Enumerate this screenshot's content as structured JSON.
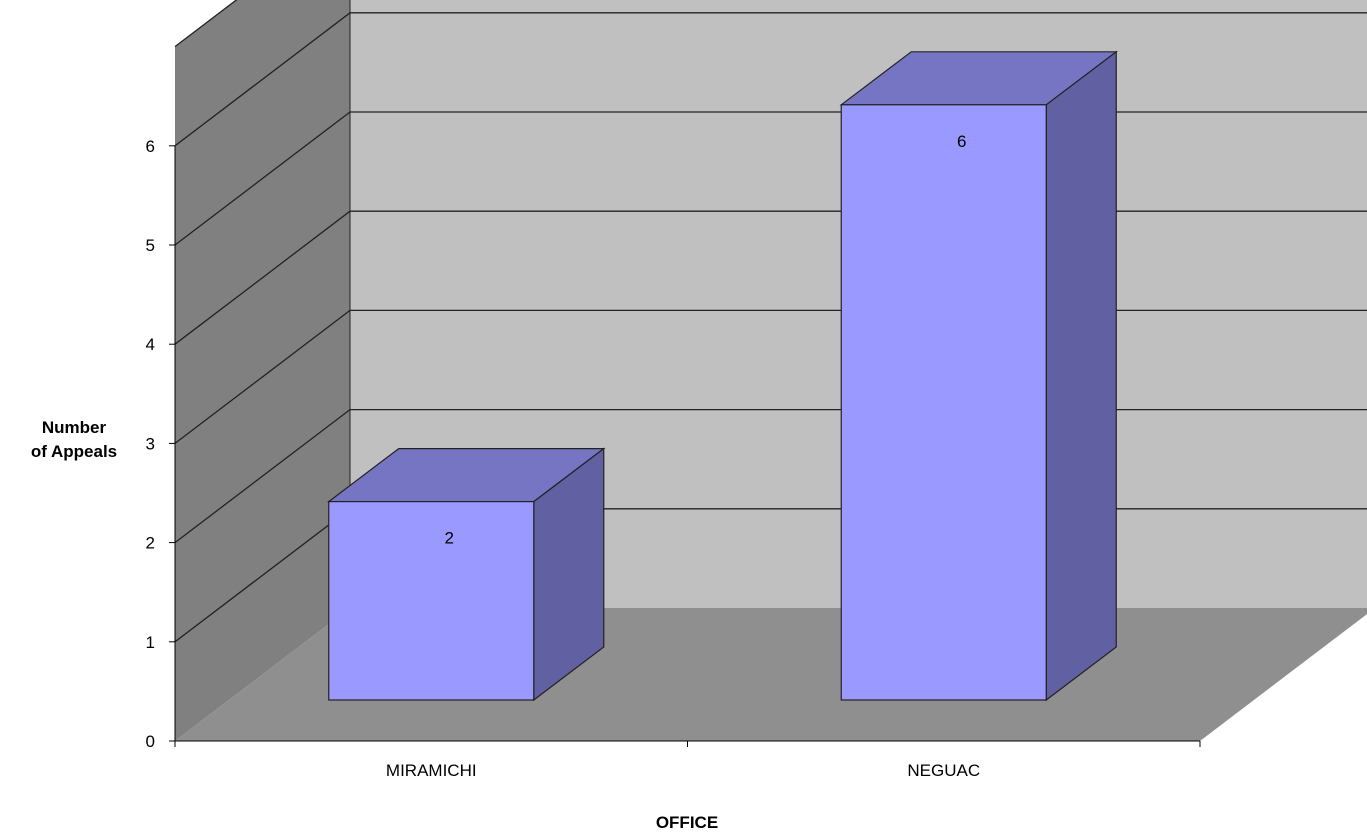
{
  "chart_data": {
    "type": "bar",
    "style": "3d-column",
    "categories": [
      "MIRAMICHI",
      "NEGUAC"
    ],
    "values": [
      2,
      6
    ],
    "data_labels": [
      "2",
      "6"
    ],
    "title": "",
    "xlabel": "OFFICE",
    "ylabel_lines": [
      "Number",
      "of Appeals"
    ],
    "ylim": [
      0,
      6
    ],
    "yticks": [
      "0",
      "1",
      "2",
      "3",
      "4",
      "5",
      "6"
    ],
    "grid": true,
    "legend": "none",
    "colors": {
      "bar_front": "#9999FF",
      "bar_top": "#7575C4",
      "bar_side": "#6060A3",
      "back_wall": "#C0C0C0",
      "side_wall": "#808080",
      "floor": "#8F8F8F",
      "gridline": "#222222"
    }
  }
}
